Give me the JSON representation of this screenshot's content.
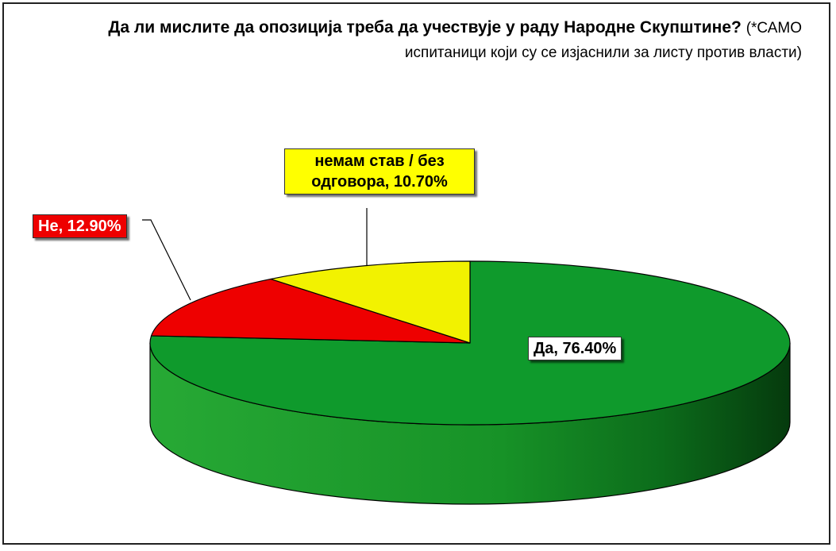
{
  "chart_data": {
    "type": "pie",
    "title": "Да ли мислите да опозиција треба да учествује у раду Народне Скупштине?",
    "subtitle": "(*САМО испитаници који су се изјаснили за листу против власти)",
    "slices": [
      {
        "name": "Да",
        "value": 76.4,
        "label": "Да, 76.40%",
        "color": "#0f9a2c"
      },
      {
        "name": "Не",
        "value": 12.9,
        "label": "Не, 12.90%",
        "color": "#ee0000"
      },
      {
        "name": "немам став / без одговора",
        "value": 10.7,
        "label": "немам став / без одговора, 10.70%",
        "color": "#f2f200"
      }
    ]
  },
  "title": {
    "main": "Да ли мислите да опозиција треба да учествује у раду Народне Скупштине?",
    "sub": "(*САМО испитаници који су се изјаснили за листу против власти)"
  },
  "labels": {
    "ne": "Не, 12.90%",
    "nemam": "немам став / без одговора, 10.70%",
    "da": "Да, 76.40%"
  }
}
